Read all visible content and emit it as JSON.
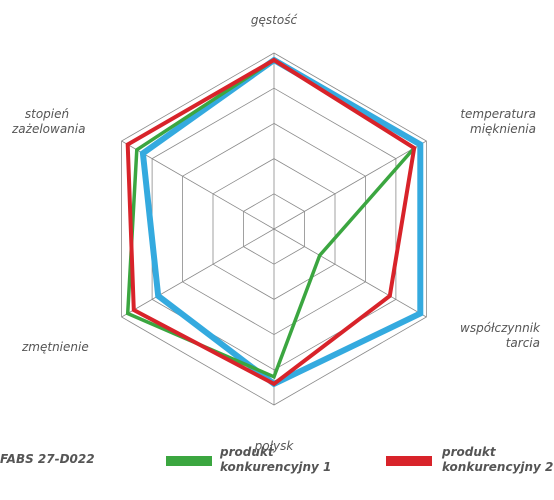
{
  "chart_data": {
    "type": "radar",
    "axes": [
      [
        "gęstość"
      ],
      [
        "temperatura",
        "mięknienia"
      ],
      [
        "współczynnik",
        "tarcia"
      ],
      [
        "połysk"
      ],
      [
        "zmętnienie"
      ],
      [
        "stopień",
        "zażelowania"
      ]
    ],
    "r_max": 5,
    "grid_levels": 5,
    "grid": true,
    "series": [
      {
        "name": "FABS 27-D022",
        "color": "#34AADF",
        "values": [
          4.8,
          4.8,
          4.8,
          4.4,
          3.8,
          4.3
        ]
      },
      {
        "name": "produkt konkurencyjny 1",
        "color": "#3BA640",
        "values": [
          4.8,
          4.6,
          1.5,
          4.2,
          4.8,
          4.5
        ]
      },
      {
        "name": "produkt konkurencyjny 2",
        "color": "#D8232A",
        "values": [
          4.8,
          4.6,
          3.8,
          4.4,
          4.6,
          4.8
        ]
      }
    ],
    "legend": {
      "position": "bottom",
      "items": [
        {
          "lines": [
            "FABS 27-D022"
          ]
        },
        {
          "lines": [
            "produkt",
            "konkurencyjny 1"
          ]
        },
        {
          "lines": [
            "produkt",
            "konkurencyjny 2"
          ]
        }
      ]
    }
  }
}
